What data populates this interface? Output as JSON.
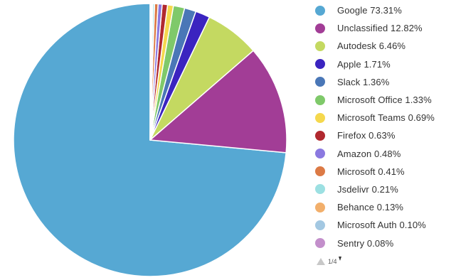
{
  "chart_data": {
    "type": "pie",
    "slices": [
      {
        "label": "Google 73.31%",
        "name": "Google",
        "value": 73.31,
        "color": "#56A8D3"
      },
      {
        "label": "Unclassified 12.82%",
        "name": "Unclassified",
        "value": 12.82,
        "color": "#A23D96"
      },
      {
        "label": "Autodesk 6.46%",
        "name": "Autodesk",
        "value": 6.46,
        "color": "#C4D961"
      },
      {
        "label": "Apple 1.71%",
        "name": "Apple",
        "value": 1.71,
        "color": "#3B24C0"
      },
      {
        "label": "Slack 1.36%",
        "name": "Slack",
        "value": 1.36,
        "color": "#4A77B7"
      },
      {
        "label": "Microsoft Office 1.33%",
        "name": "Microsoft Office",
        "value": 1.33,
        "color": "#7FC96A"
      },
      {
        "label": "Microsoft Teams 0.69%",
        "name": "Microsoft Teams",
        "value": 0.69,
        "color": "#F5D84D"
      },
      {
        "label": "Firefox 0.63%",
        "name": "Firefox",
        "value": 0.63,
        "color": "#B1292F"
      },
      {
        "label": "Amazon 0.48%",
        "name": "Amazon",
        "value": 0.48,
        "color": "#8B79E0"
      },
      {
        "label": "Microsoft 0.41%",
        "name": "Microsoft",
        "value": 0.41,
        "color": "#DC7A45"
      },
      {
        "label": "Jsdelivr 0.21%",
        "name": "Jsdelivr",
        "value": 0.21,
        "color": "#9CE0E2"
      },
      {
        "label": "Behance 0.13%",
        "name": "Behance",
        "value": 0.13,
        "color": "#F2AF6B"
      },
      {
        "label": "Microsoft Auth 0.10%",
        "name": "Microsoft Auth",
        "value": 0.1,
        "color": "#A3C8E2"
      },
      {
        "label": "Sentry 0.08%",
        "name": "Sentry",
        "value": 0.08,
        "color": "#C38FCB"
      }
    ],
    "start_angle_deg": 0,
    "direction": "counterclockwise",
    "legend_position": "right"
  },
  "legend": {
    "pager_text": "1/4"
  }
}
